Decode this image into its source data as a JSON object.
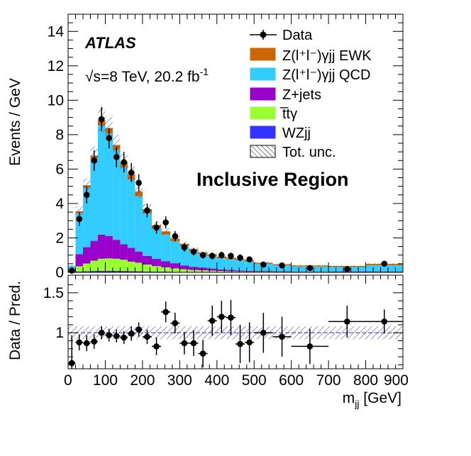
{
  "chart_data": [
    {
      "type": "stacked_histogram",
      "panel": "main",
      "ylabel": "Events / GeV",
      "ylim": [
        0,
        15
      ],
      "yticks": [
        0,
        2,
        4,
        6,
        8,
        10,
        12,
        14
      ],
      "xlim": [
        0,
        900
      ],
      "experiment": "ATLAS",
      "energy_label": "√s=8 TeV, 20.2  fb⁻¹",
      "region_label": "Inclusive Region",
      "bin_edges": [
        0,
        20,
        40,
        60,
        80,
        100,
        120,
        140,
        160,
        180,
        200,
        225,
        250,
        275,
        300,
        325,
        350,
        375,
        400,
        425,
        450,
        475,
        500,
        550,
        600,
        700,
        800,
        900
      ],
      "series": [
        {
          "name": "WZjj",
          "color": "#3333ff",
          "values": [
            0.01,
            0.05,
            0.06,
            0.08,
            0.09,
            0.09,
            0.09,
            0.08,
            0.07,
            0.06,
            0.05,
            0.04,
            0.04,
            0.03,
            0.03,
            0.02,
            0.02,
            0.02,
            0.02,
            0.01,
            0.01,
            0.01,
            0.01,
            0.01,
            0.01,
            0.01,
            0.01
          ]
        },
        {
          "name": "tt̄γ",
          "color": "#99ff33",
          "values": [
            0.02,
            0.3,
            0.45,
            0.6,
            0.7,
            0.72,
            0.7,
            0.65,
            0.55,
            0.5,
            0.4,
            0.32,
            0.25,
            0.2,
            0.15,
            0.12,
            0.1,
            0.08,
            0.06,
            0.05,
            0.04,
            0.03,
            0.03,
            0.02,
            0.02,
            0.01,
            0.01
          ]
        },
        {
          "name": "Z+jets",
          "color": "#9900cc",
          "values": [
            0.05,
            0.7,
            0.95,
            1.15,
            1.4,
            1.3,
            1.1,
            0.9,
            0.8,
            0.65,
            0.5,
            0.42,
            0.35,
            0.3,
            0.22,
            0.18,
            0.15,
            0.12,
            0.09,
            0.08,
            0.06,
            0.05,
            0.04,
            0.03,
            0.02,
            0.02,
            0.02
          ]
        },
        {
          "name": "Z(l⁺l⁻)γjj QCD",
          "color": "#33ccff",
          "values": [
            0.3,
            2.4,
            3.45,
            4.75,
            6.36,
            5.97,
            5.21,
            4.47,
            3.98,
            3.21,
            2.47,
            1.76,
            1.56,
            1.27,
            1.12,
            0.9,
            0.77,
            0.72,
            0.65,
            0.62,
            0.6,
            0.53,
            0.41,
            0.35,
            0.29,
            0.27,
            0.37
          ]
        },
        {
          "name": "Z(l⁺l⁻)γjj EWK",
          "color": "#cc6600",
          "values": [
            0.0,
            0.1,
            0.15,
            0.2,
            0.3,
            0.3,
            0.3,
            0.3,
            0.3,
            0.28,
            0.25,
            0.2,
            0.18,
            0.16,
            0.14,
            0.12,
            0.11,
            0.1,
            0.09,
            0.09,
            0.08,
            0.08,
            0.07,
            0.06,
            0.06,
            0.06,
            0.08
          ]
        }
      ],
      "data": {
        "name": "Data",
        "x": [
          10,
          30,
          50,
          70,
          90,
          110,
          130,
          150,
          170,
          190,
          212.5,
          237.5,
          262.5,
          287.5,
          312.5,
          337.5,
          362.5,
          387.5,
          412.5,
          437.5,
          462.5,
          487.5,
          525,
          575,
          650,
          750,
          850
        ],
        "y": [
          0.1,
          3.1,
          4.5,
          6.5,
          8.9,
          7.8,
          6.7,
          6.4,
          5.8,
          5.2,
          3.6,
          2.6,
          2.9,
          2.1,
          1.45,
          1.2,
          1.0,
          0.95,
          1.0,
          0.95,
          0.85,
          0.75,
          0.45,
          0.4,
          0.25,
          0.18,
          0.5
        ],
        "yerr": [
          0.1,
          0.4,
          0.5,
          0.6,
          0.7,
          0.6,
          0.6,
          0.6,
          0.55,
          0.5,
          0.4,
          0.35,
          0.35,
          0.3,
          0.25,
          0.22,
          0.2,
          0.2,
          0.2,
          0.2,
          0.2,
          0.18,
          0.1,
          0.09,
          0.05,
          0.04,
          0.07
        ]
      },
      "legend": [
        "Data",
        "Z(l⁺l⁻)γjj EWK",
        "Z(l⁺l⁻)γjj QCD",
        "Z+jets",
        "tt̄γ",
        "WZjj",
        "Tot. unc."
      ],
      "legend_position": "top-right"
    },
    {
      "type": "scatter",
      "panel": "ratio",
      "ylabel": "Data / Pred.",
      "xlabel": "m_jj [GeV]",
      "xlim": [
        0,
        900
      ],
      "xticks": [
        0,
        100,
        200,
        300,
        400,
        500,
        600,
        700,
        800,
        900
      ],
      "ylim": [
        0.55,
        1.72
      ],
      "yticks": [
        1,
        1.5
      ],
      "ytick_labels": [
        "1",
        "1.5"
      ],
      "reference_line": 1,
      "uncertainty_band": [
        0.92,
        1.08
      ],
      "x": [
        10,
        30,
        50,
        70,
        90,
        110,
        130,
        150,
        170,
        190,
        212.5,
        237.5,
        262.5,
        287.5,
        312.5,
        337.5,
        362.5,
        387.5,
        412.5,
        437.5,
        462.5,
        487.5,
        525,
        575,
        650,
        750,
        850
      ],
      "xerr": [
        10,
        10,
        10,
        10,
        10,
        10,
        10,
        10,
        10,
        10,
        12.5,
        12.5,
        12.5,
        12.5,
        12.5,
        12.5,
        12.5,
        12.5,
        12.5,
        12.5,
        12.5,
        12.5,
        25,
        25,
        50,
        50,
        50
      ],
      "y": [
        0.62,
        0.88,
        0.87,
        0.89,
        1.0,
        0.97,
        0.96,
        0.94,
        0.99,
        1.04,
        0.95,
        0.83,
        1.26,
        1.12,
        0.87,
        0.87,
        0.74,
        1.15,
        1.2,
        1.19,
        0.86,
        0.88,
        1.0,
        0.95,
        0.83,
        1.14,
        1.14
      ],
      "yerr": [
        0.35,
        0.1,
        0.1,
        0.09,
        0.08,
        0.08,
        0.08,
        0.08,
        0.09,
        0.09,
        0.09,
        0.11,
        0.13,
        0.13,
        0.14,
        0.16,
        0.17,
        0.19,
        0.2,
        0.22,
        0.24,
        0.25,
        0.25,
        0.25,
        0.22,
        0.2,
        0.15
      ]
    }
  ],
  "ratio_points_note": "",
  "axes": {
    "xlabel": "m",
    "xlabel_sub": "jj",
    "xlabel_unit": " [GeV]"
  },
  "legend_entries": {
    "data": "Data",
    "ewk": "Z(l⁺l⁻)γjj EWK",
    "qcd": "Z(l⁺l⁻)γjj QCD",
    "zjets": "Z+jets",
    "ttg": "t̅tγ",
    "wzjj": "WZjj",
    "unc": "Tot. unc."
  },
  "labels": {
    "atlas": "ATLAS",
    "energy": "√s=8 TeV, 20.2  fb",
    "energy_sup": "-1",
    "region": "Inclusive Region",
    "ylabel_main": "Events / GeV",
    "ylabel_ratio": "Data / Pred."
  }
}
